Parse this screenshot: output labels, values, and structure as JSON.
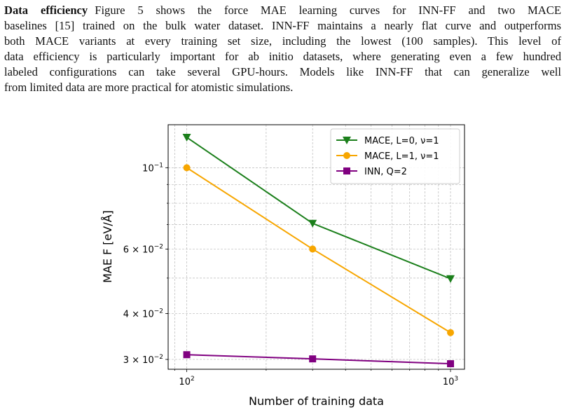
{
  "paragraph": {
    "heading": "Data efficiency",
    "lines": [
      "Figure 5 shows the force MAE learning curves for INN-FF and two MACE",
      "baselines [15] trained on the bulk water dataset. INN-FF maintains a nearly flat curve and outperforms",
      "both MACE variants at every training set size, including the lowest (100 samples). This level of",
      "data efficiency is particularly important for ab initio datasets, where generating even a few hundred",
      "labeled configurations can take several GPU-hours. Models like INN-FF that can generalize well",
      "from limited data are more practical for atomistic simulations."
    ]
  },
  "chart_data": {
    "type": "line",
    "x_scale": "log",
    "y_scale": "log",
    "xlabel": "Number of training data",
    "ylabel": "MAE F [eV/Å]",
    "xlim": [
      85,
      1130
    ],
    "ylim": [
      0.0282,
      0.131
    ],
    "x_ticks": [
      {
        "value": 100,
        "base": "10",
        "exp": "2"
      },
      {
        "value": 1000,
        "base": "10",
        "exp": "3"
      }
    ],
    "y_ticks": [
      {
        "value": 0.1,
        "mant": "",
        "base": "10",
        "exp": "−1"
      },
      {
        "value": 0.06,
        "mant": "6 × ",
        "base": "10",
        "exp": "−2"
      },
      {
        "value": 0.04,
        "mant": "4 × ",
        "base": "10",
        "exp": "−2"
      },
      {
        "value": 0.03,
        "mant": "3 × ",
        "base": "10",
        "exp": "−2"
      }
    ],
    "grid": true,
    "legend_position": "top-right",
    "series": [
      {
        "name": "MACE, L=0, ν=1",
        "color": "#1b7f1b",
        "marker": "triangle-down",
        "x": [
          100,
          300,
          1000
        ],
        "y": [
          0.121,
          0.0705,
          0.0498
        ]
      },
      {
        "name": "MACE, L=1, ν=1",
        "color": "#f7a600",
        "marker": "circle",
        "x": [
          100,
          300,
          1000
        ],
        "y": [
          0.1,
          0.06,
          0.0355
        ]
      },
      {
        "name": "INN, Q=2",
        "color": "#800080",
        "marker": "square",
        "x": [
          100,
          300,
          1000
        ],
        "y": [
          0.0309,
          0.0301,
          0.0292
        ]
      }
    ]
  }
}
